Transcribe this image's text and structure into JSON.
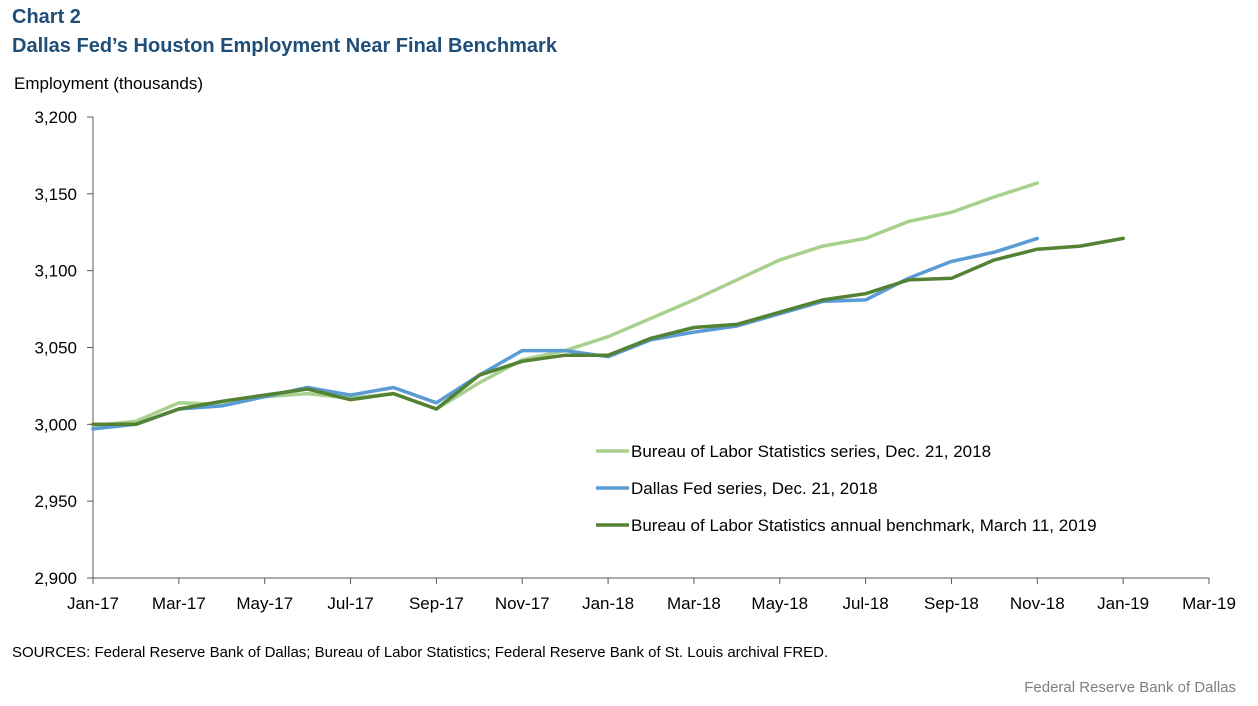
{
  "header": {
    "chart_label": "Chart 2",
    "title": "Dallas Fed’s Houston Employment  Near Final Benchmark",
    "y_unit": "Employment  (thousands)"
  },
  "footer": {
    "sources": "SOURCES: Federal Reserve Bank of Dallas; Bureau of Labor Statistics; Federal Reserve Bank of St. Louis archival FRED.",
    "credit": "Federal Reserve Bank of Dallas"
  },
  "chart_data": {
    "type": "line",
    "title": "Dallas Fed’s Houston Employment  Near Final Benchmark",
    "ylabel": "Employment  (thousands)",
    "xlabel": "",
    "ylim": [
      2900,
      3200
    ],
    "y_ticks": [
      2900,
      2950,
      3000,
      3050,
      3100,
      3150,
      3200
    ],
    "y_tick_labels": [
      "2,900",
      "2,950",
      "3,000",
      "3,050",
      "3,100",
      "3,150",
      "3,200"
    ],
    "x_tick_labels": [
      "Jan-17",
      "Mar-17",
      "May-17",
      "Jul-17",
      "Sep-17",
      "Nov-17",
      "Jan-18",
      "Mar-18",
      "May-18",
      "Jul-18",
      "Sep-18",
      "Nov-18",
      "Jan-19",
      "Mar-19"
    ],
    "x_months": [
      "Jan-17",
      "Feb-17",
      "Mar-17",
      "Apr-17",
      "May-17",
      "Jun-17",
      "Jul-17",
      "Aug-17",
      "Sep-17",
      "Oct-17",
      "Nov-17",
      "Dec-17",
      "Jan-18",
      "Feb-18",
      "Mar-18",
      "Apr-18",
      "May-18",
      "Jun-18",
      "Jul-18",
      "Aug-18",
      "Sep-18",
      "Oct-18",
      "Nov-18",
      "Dec-18",
      "Jan-19",
      "Feb-19",
      "Mar-19"
    ],
    "grid": false,
    "legend_position": "lower-right",
    "series": [
      {
        "name": "Bureau of Labor Statistics series, Dec. 21, 2018",
        "color": "#a9d18e",
        "values": [
          2999,
          3002,
          3014,
          3013,
          3018,
          3020,
          3017,
          3020,
          3010,
          3027,
          3042,
          3048,
          3057,
          3069,
          3081,
          3094,
          3107,
          3116,
          3121,
          3132,
          3138,
          3148,
          3157
        ]
      },
      {
        "name": "Dallas Fed series, Dec. 21, 2018",
        "color": "#5b9bd5",
        "values": [
          2997,
          3000,
          3010,
          3012,
          3018,
          3024,
          3019,
          3024,
          3014,
          3032,
          3048,
          3048,
          3044,
          3055,
          3060,
          3064,
          3072,
          3080,
          3081,
          3095,
          3106,
          3112,
          3121
        ]
      },
      {
        "name": "Bureau of Labor Statistics annual benchmark, March 11, 2019",
        "color": "#548235",
        "values": [
          3000,
          3000,
          3010,
          3015,
          3019,
          3023,
          3016,
          3020,
          3010,
          3032,
          3041,
          3045,
          3045,
          3056,
          3063,
          3065,
          3073,
          3081,
          3085,
          3094,
          3095,
          3107,
          3114,
          3116,
          3121
        ]
      }
    ]
  }
}
